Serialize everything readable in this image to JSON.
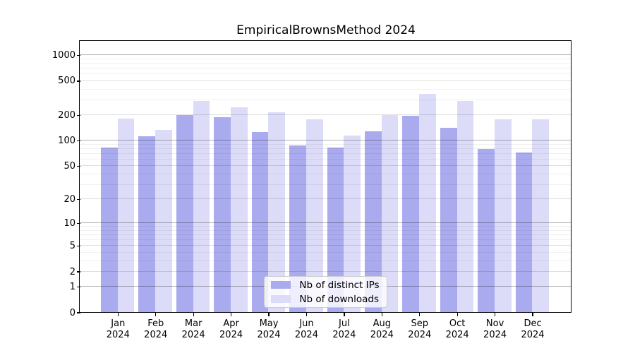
{
  "chart_data": {
    "type": "bar",
    "title": "EmpiricalBrownsMethod 2024",
    "categories": [
      "Jan",
      "Feb",
      "Mar",
      "Apr",
      "May",
      "Jun",
      "Jul",
      "Aug",
      "Sep",
      "Oct",
      "Nov",
      "Dec"
    ],
    "x_sublabel": "2024",
    "series": [
      {
        "name": "Nb of distinct IPs",
        "color": "#aaaaee",
        "values": [
          83,
          112,
          200,
          188,
          126,
          88,
          82,
          128,
          193,
          140,
          79,
          72
        ]
      },
      {
        "name": "Nb of downloads",
        "color": "#dcdcf8",
        "values": [
          180,
          132,
          290,
          246,
          215,
          178,
          114,
          197,
          350,
          290,
          177,
          177
        ]
      }
    ],
    "y_scale": "log1p",
    "ylim": [
      0,
      1444
    ],
    "y_ticks": [
      0,
      1,
      2,
      5,
      10,
      20,
      50,
      100,
      200,
      500,
      1000
    ],
    "y_major_gridlines": [
      1,
      10,
      100,
      1000
    ],
    "y_minor_gridlines": [
      3,
      4,
      6,
      7,
      8,
      9,
      30,
      40,
      60,
      70,
      80,
      90,
      300,
      400,
      600,
      700,
      800,
      900
    ],
    "grid": true,
    "legend_position": "lower center"
  },
  "colors": {
    "bar_ips": "#aaaaee",
    "bar_downloads": "#dcdcf8",
    "grid_major": "rgba(0,0,0,0.30)",
    "grid_mid": "rgba(0,0,0,0.13)",
    "grid_minor": "rgba(0,0,0,0.06)",
    "spine": "#000000",
    "text": "#000000",
    "legend_border": "#cccccc",
    "legend_bg": "rgba(255,255,255,0.8)"
  }
}
